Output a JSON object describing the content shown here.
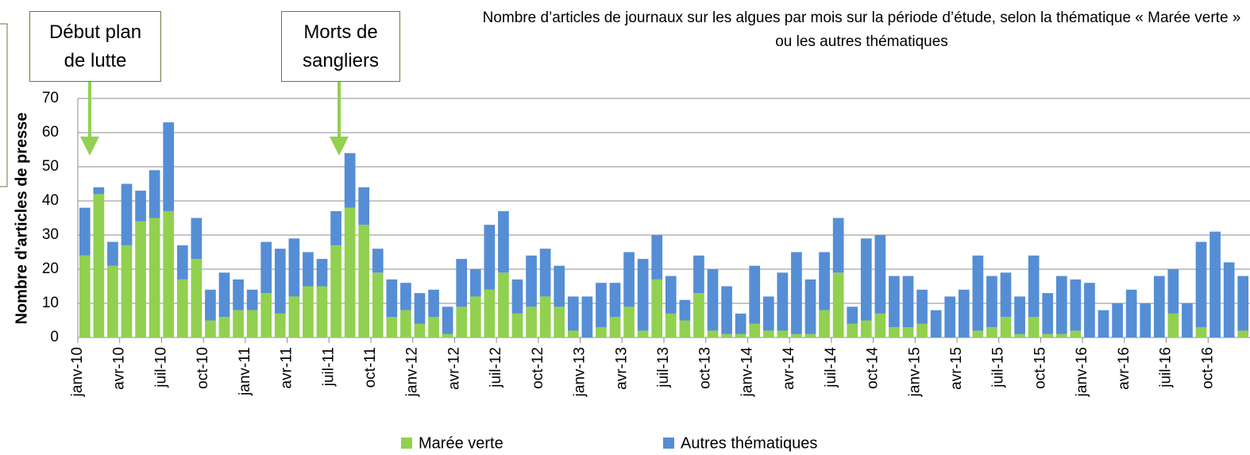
{
  "chart_data": {
    "type": "bar",
    "stacked": true,
    "title": "Nombre d’articles de journaux sur les algues par mois sur la période d’étude, selon la thématique « Marée verte » ou les autres thématiques",
    "y_label": "Nombre d'articles de presse",
    "annotations": [
      "Début plan de lutte",
      "Morts de sangliers"
    ],
    "categories": [
      "janv-10",
      null,
      null,
      "avr-10",
      null,
      null,
      "juil-10",
      null,
      null,
      "oct-10",
      null,
      null,
      "janv-11",
      null,
      null,
      "avr-11",
      null,
      null,
      "juil-11",
      null,
      null,
      "oct-11",
      null,
      null,
      "janv-12",
      null,
      null,
      "avr-12",
      null,
      null,
      "juil-12",
      null,
      null,
      "oct-12",
      null,
      null,
      "janv-13",
      null,
      null,
      "avr-13",
      null,
      null,
      "juil-13",
      null,
      null,
      "oct-13",
      null,
      null,
      "janv-14",
      null,
      null,
      "avr-14",
      null,
      null,
      "juil-14",
      null,
      null,
      "oct-14",
      null,
      null,
      "janv-15",
      null,
      null,
      "avr-15",
      null,
      null,
      "juil-15",
      null,
      null,
      "oct-15",
      null,
      null,
      "janv-16",
      null,
      null,
      "avr-16",
      null,
      null,
      "juil-16",
      null,
      null,
      "oct-16",
      null,
      null
    ],
    "series": [
      {
        "name": "Marée verte",
        "color": "#92d050",
        "values": [
          24,
          42,
          21,
          27,
          34,
          35,
          37,
          17,
          23,
          5,
          6,
          8,
          8,
          13,
          7,
          12,
          15,
          15,
          27,
          38,
          33,
          19,
          6,
          8,
          4,
          6,
          1,
          9,
          12,
          14,
          19,
          7,
          9,
          12,
          9,
          2,
          0,
          3,
          6,
          9,
          2,
          17,
          7,
          5,
          13,
          2,
          1,
          1,
          4,
          2,
          2,
          1,
          1,
          8,
          19,
          4,
          5,
          7,
          3,
          3,
          4,
          0,
          0,
          0,
          2,
          3,
          6,
          1,
          6,
          1,
          1,
          2,
          0,
          0,
          0,
          0,
          0,
          0,
          7,
          0,
          3,
          0,
          0,
          2
        ]
      },
      {
        "name": "Autres thématiques",
        "color": "#558ed5",
        "values": [
          14,
          2,
          7,
          18,
          9,
          14,
          26,
          10,
          12,
          9,
          13,
          9,
          6,
          15,
          19,
          17,
          10,
          8,
          10,
          16,
          11,
          7,
          11,
          8,
          9,
          8,
          8,
          14,
          8,
          19,
          18,
          10,
          15,
          14,
          12,
          10,
          12,
          13,
          10,
          16,
          21,
          13,
          11,
          6,
          11,
          18,
          14,
          6,
          17,
          10,
          17,
          24,
          16,
          17,
          16,
          5,
          24,
          23,
          15,
          15,
          10,
          8,
          12,
          14,
          22,
          15,
          13,
          11,
          18,
          12,
          17,
          15,
          16,
          8,
          10,
          14,
          10,
          18,
          13,
          10,
          25,
          31,
          22,
          16
        ]
      }
    ],
    "ylim": [
      0,
      70
    ],
    "yticks": [
      0,
      10,
      20,
      30,
      40,
      50,
      60,
      70
    ],
    "grid": true,
    "legend": "bottom"
  }
}
